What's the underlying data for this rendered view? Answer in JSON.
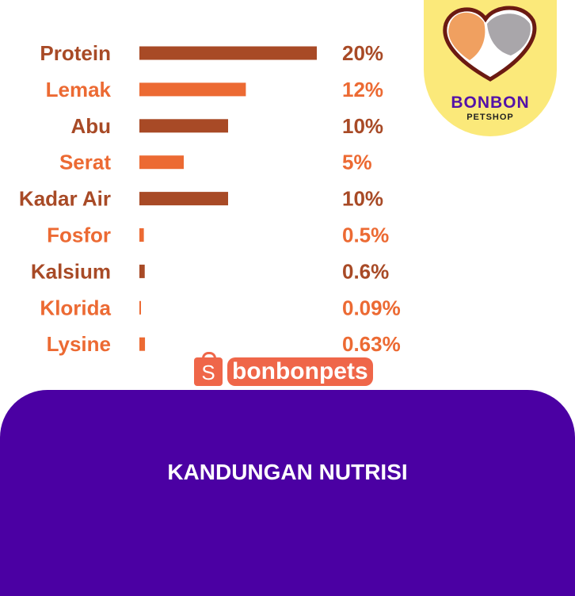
{
  "brand": {
    "name": "BONBON",
    "subtitle": "PETSHOP",
    "watermark": "bonbonpets",
    "watermark_icon": "shopee-bag-icon"
  },
  "footer": {
    "title": "KANDUNGAN NUTRISI",
    "background": "#4b00a3"
  },
  "colors": {
    "dark": "#a84a26",
    "light": "#ec6a33"
  },
  "chart_data": {
    "type": "bar",
    "orientation": "horizontal",
    "categories": [
      "Protein",
      "Lemak",
      "Abu",
      "Serat",
      "Kadar Air",
      "Fosfor",
      "Kalsium",
      "Klorida",
      "Lysine"
    ],
    "values": [
      20,
      12,
      10,
      5,
      10,
      0.5,
      0.6,
      0.09,
      0.63
    ],
    "value_labels": [
      "20%",
      "12%",
      "10%",
      "5%",
      "10%",
      "0.5%",
      "0.6%",
      "0.09%",
      "0.63%"
    ],
    "bar_colors": [
      "#a84a26",
      "#ec6a33",
      "#a84a26",
      "#ec6a33",
      "#a84a26",
      "#ec6a33",
      "#a84a26",
      "#ec6a33",
      "#ec6a33"
    ],
    "unit": "%",
    "grid": false,
    "axes_visible": false
  }
}
